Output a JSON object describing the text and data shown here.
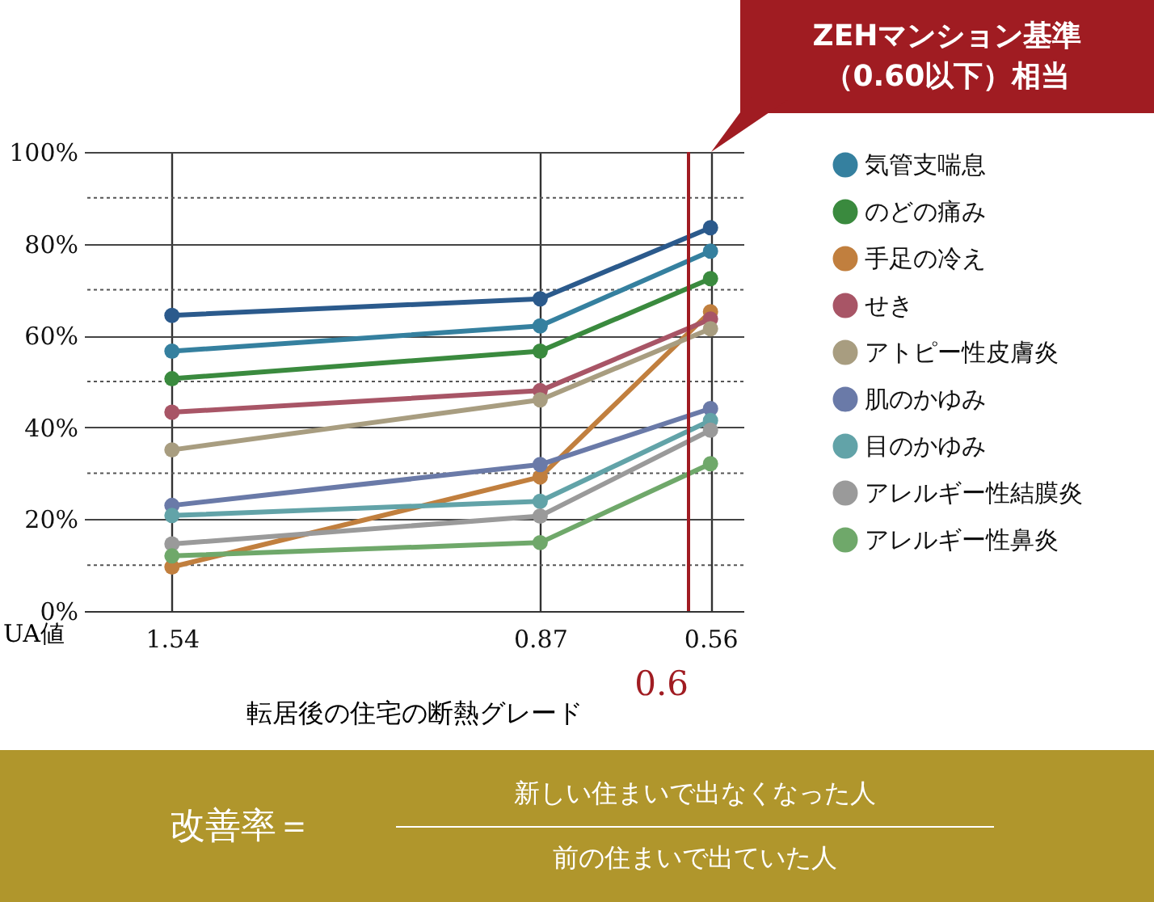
{
  "chart_data": {
    "type": "line",
    "xlabel": "転居後の住宅の断熱グレード",
    "x": [
      1.54,
      0.87,
      0.56
    ],
    "xlim": [
      1.7,
      0.5
    ],
    "xticks": [
      1.54,
      0.87,
      0.56
    ],
    "ylim": [
      0,
      100
    ],
    "yticks": [
      {
        "value": 0,
        "label": "0%"
      },
      {
        "value": 10,
        "label": null
      },
      {
        "value": 20,
        "label": "20%"
      },
      {
        "value": 30,
        "label": null
      },
      {
        "value": 40,
        "label": "40%"
      },
      {
        "value": 50,
        "label": null
      },
      {
        "value": 60,
        "label": "60%"
      },
      {
        "value": 70,
        "label": null
      },
      {
        "value": 80,
        "label": "80%"
      },
      {
        "value": 90,
        "label": null
      },
      {
        "value": 100,
        "label": "100%"
      }
    ],
    "grid": true,
    "legend": "right",
    "marker": "circle",
    "line_style": "solid",
    "ref_lines": [
      {
        "axis": "x",
        "value": 0.6,
        "label": "0.6",
        "color": "#a01c22"
      }
    ],
    "annotations": [
      "UA値",
      "ZEHマンション基準（0.60以下）相当",
      "改善率＝",
      "新しい住まいで出なくなった人",
      "前の住まいで出ていた人"
    ],
    "series": [
      {
        "color": "#2b5a8c",
        "values": [
          64.4,
          68.0,
          83.5
        ]
      },
      {
        "name": "気管支喘息",
        "color": "#35809f",
        "values": [
          56.6,
          62.1,
          78.4
        ]
      },
      {
        "name": "のどの痛み",
        "color": "#3a8a3e",
        "values": [
          50.6,
          56.6,
          72.4
        ]
      },
      {
        "name": "手足の冷え",
        "color": "#c17f3e",
        "values": [
          9.6,
          29.2,
          65.2
        ]
      },
      {
        "name": "せき",
        "color": "#a85566",
        "values": [
          43.3,
          48.0,
          63.6
        ]
      },
      {
        "name": "アトピー性皮膚炎",
        "color": "#a89d80",
        "values": [
          35.1,
          46.0,
          61.5
        ]
      },
      {
        "name": "肌のかゆみ",
        "color": "#6a7aa8",
        "values": [
          23.0,
          31.9,
          44.1
        ]
      },
      {
        "name": "目のかゆみ",
        "color": "#62a3a8",
        "values": [
          20.8,
          23.9,
          41.5
        ]
      },
      {
        "name": "アレルギー性結膜炎",
        "color": "#9a9a9a",
        "values": [
          14.6,
          20.7,
          39.4
        ]
      },
      {
        "name": "アレルギー性鼻炎",
        "color": "#6fa86a",
        "values": [
          12.0,
          14.9,
          32.1
        ]
      }
    ]
  }
}
